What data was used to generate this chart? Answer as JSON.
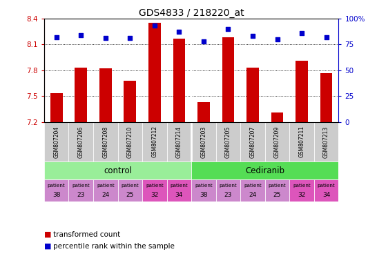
{
  "title": "GDS4833 / 218220_at",
  "samples": [
    "GSM807204",
    "GSM807206",
    "GSM807208",
    "GSM807210",
    "GSM807212",
    "GSM807214",
    "GSM807203",
    "GSM807205",
    "GSM807207",
    "GSM807209",
    "GSM807211",
    "GSM807213"
  ],
  "bar_values": [
    7.53,
    7.83,
    7.82,
    7.68,
    8.35,
    8.17,
    7.43,
    8.18,
    7.83,
    7.31,
    7.91,
    7.77
  ],
  "dot_values_pct": [
    82,
    84,
    81,
    81,
    93,
    87,
    78,
    90,
    83,
    80,
    86,
    82
  ],
  "ylim_left": [
    7.2,
    8.4
  ],
  "ylim_right": [
    0,
    100
  ],
  "yticks_left": [
    7.2,
    7.5,
    7.8,
    8.1,
    8.4
  ],
  "yticks_right": [
    0,
    25,
    50,
    75,
    100
  ],
  "bar_color": "#cc0000",
  "dot_color": "#0000cc",
  "bar_bottom": 7.2,
  "agent_labels": [
    "control",
    "Cediranib"
  ],
  "agent_color_control": "#99ee99",
  "agent_color_cediranib": "#55dd55",
  "indiv_colors": [
    "#cc88cc",
    "#cc88cc",
    "#cc88cc",
    "#cc88cc",
    "#dd55bb",
    "#dd55bb",
    "#cc88cc",
    "#cc88cc",
    "#cc88cc",
    "#cc88cc",
    "#dd55bb",
    "#dd55bb"
  ],
  "indiv_nums": [
    "38",
    "23",
    "24",
    "25",
    "32",
    "34",
    "38",
    "23",
    "24",
    "25",
    "32",
    "34"
  ],
  "sample_bg_color": "#cccccc",
  "tick_color_left": "#cc0000",
  "tick_color_right": "#0000cc",
  "legend_red": "transformed count",
  "legend_blue": "percentile rank within the sample"
}
